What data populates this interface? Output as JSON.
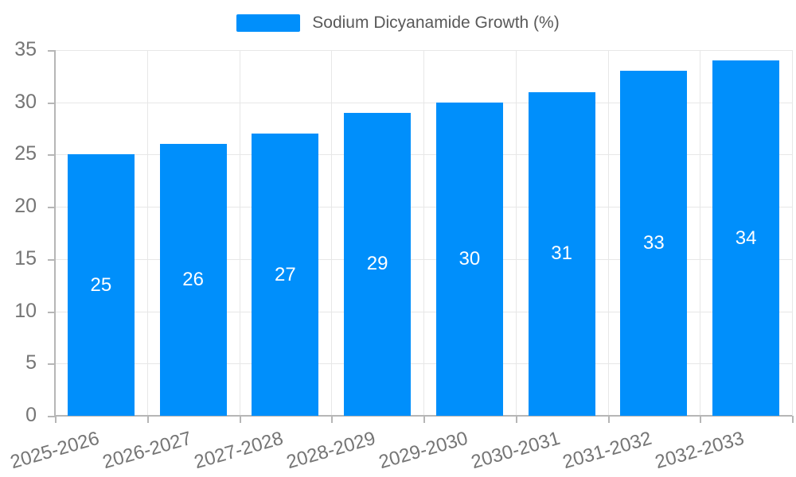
{
  "chart_data": {
    "type": "bar",
    "title": "Sodium Dicyanamide Growth (%)",
    "categories": [
      "2025-2026",
      "2026-2027",
      "2027-2028",
      "2028-2029",
      "2029-2030",
      "2030-2031",
      "2031-2032",
      "2032-2033"
    ],
    "values": [
      25,
      26,
      27,
      29,
      30,
      31,
      33,
      34
    ],
    "ylim": [
      0,
      35
    ],
    "yticks": [
      0,
      5,
      10,
      15,
      20,
      25,
      30,
      35
    ],
    "grid": true,
    "legend_position": "top",
    "bar_label_position": "inside-center",
    "colors": {
      "bar": "#008FFB",
      "bar_label": "#ffffff",
      "axis": "#b6b6b6",
      "grid": "#e7e7e7",
      "tick_label": "#757575",
      "legend_text": "#595959"
    }
  }
}
